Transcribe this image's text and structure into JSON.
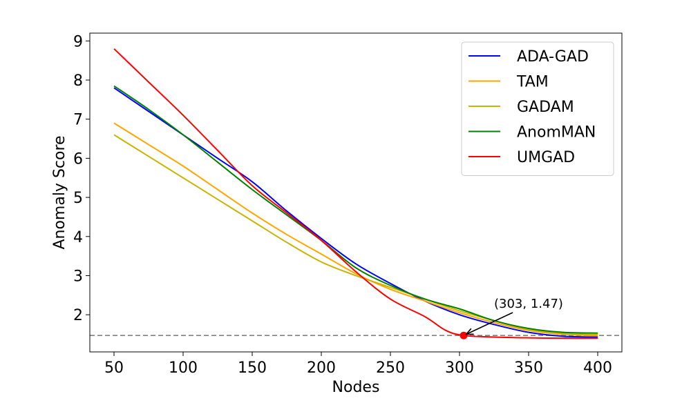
{
  "chart_data": {
    "type": "line",
    "title": "",
    "xlabel": "Nodes",
    "ylabel": "Anomaly Score",
    "xlim": [
      32.5,
      417.5
    ],
    "ylim": [
      1.05,
      9.2
    ],
    "xticks": [
      50,
      100,
      150,
      200,
      250,
      300,
      350,
      400
    ],
    "yticks": [
      2,
      3,
      4,
      5,
      6,
      7,
      8,
      9
    ],
    "grid": false,
    "legend_position": "top-right",
    "series": [
      {
        "name": "ADA-GAD",
        "color": "#0000ff",
        "x": [
          50,
          75,
          100,
          125,
          150,
          175,
          200,
          225,
          250,
          275,
          300,
          325,
          350,
          375,
          400
        ],
        "y": [
          7.8,
          7.2,
          6.6,
          6.0,
          5.4,
          4.65,
          3.95,
          3.3,
          2.8,
          2.35,
          2.0,
          1.75,
          1.55,
          1.45,
          1.43
        ]
      },
      {
        "name": "TAM",
        "color": "#ffa500",
        "x": [
          50,
          75,
          100,
          125,
          150,
          175,
          200,
          225,
          250,
          275,
          300,
          325,
          350,
          375,
          400
        ],
        "y": [
          6.9,
          6.35,
          5.8,
          5.2,
          4.6,
          4.05,
          3.55,
          3.05,
          2.65,
          2.35,
          2.05,
          1.8,
          1.6,
          1.5,
          1.47
        ]
      },
      {
        "name": "GADAM",
        "color": "#c8b400",
        "x": [
          50,
          75,
          100,
          125,
          150,
          175,
          200,
          225,
          250,
          275,
          300,
          325,
          350,
          375,
          400
        ],
        "y": [
          6.6,
          6.05,
          5.5,
          4.95,
          4.4,
          3.85,
          3.35,
          3.0,
          2.7,
          2.4,
          2.1,
          1.85,
          1.62,
          1.52,
          1.49
        ]
      },
      {
        "name": "AnomMAN",
        "color": "#008000",
        "x": [
          50,
          75,
          100,
          125,
          150,
          175,
          200,
          225,
          250,
          275,
          300,
          325,
          350,
          375,
          400
        ],
        "y": [
          7.85,
          7.25,
          6.6,
          5.9,
          5.2,
          4.55,
          3.9,
          3.2,
          2.75,
          2.4,
          2.15,
          1.85,
          1.65,
          1.55,
          1.53
        ]
      },
      {
        "name": "UMGAD",
        "color": "#ff0000",
        "x": [
          50,
          75,
          100,
          125,
          150,
          175,
          200,
          225,
          250,
          275,
          290,
          303,
          325,
          350,
          375,
          400
        ],
        "y": [
          8.8,
          7.95,
          7.1,
          6.2,
          5.3,
          4.6,
          3.9,
          3.1,
          2.4,
          1.95,
          1.6,
          1.47,
          1.43,
          1.41,
          1.4,
          1.4
        ]
      }
    ],
    "reference_line": {
      "y": 1.47,
      "style": "dashed",
      "color": "#808080"
    },
    "highlight_point": {
      "x": 303,
      "y": 1.47,
      "color": "#ff0000"
    },
    "annotation": {
      "text": "(303, 1.47)",
      "x": 303,
      "y": 1.47
    }
  }
}
